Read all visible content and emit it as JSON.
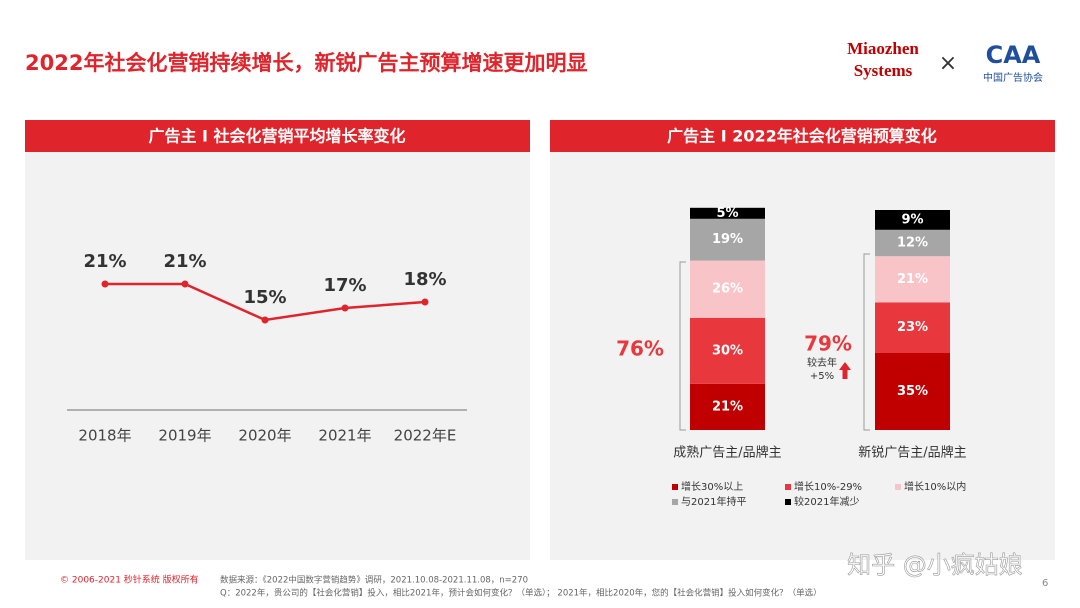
{
  "header": {
    "title": "2022年社会化营销持续增长，新锐广告主预算增速更加明显",
    "logo_left": [
      "Miaozhen",
      "Systems"
    ],
    "times": "×",
    "logo_right": "CAA",
    "logo_right_sub": "中国广告协会"
  },
  "chart_data": [
    {
      "type": "line",
      "title": "广告主 I 社会化营销平均增长率变化",
      "color": "#e0242c",
      "categories": [
        "2018年",
        "2019年",
        "2020年",
        "2021年",
        "2022年E"
      ],
      "values": [
        21,
        21,
        15,
        17,
        18
      ],
      "value_labels": [
        "21%",
        "21%",
        "15%",
        "17%",
        "18%"
      ]
    },
    {
      "type": "stacked_bar",
      "title": "广告主 I 2022年社会化营销预算变化",
      "categories": [
        "成熟广告主/品牌主",
        "新锐广告主/品牌主"
      ],
      "series": [
        {
          "name": "增长30%以上",
          "color": "#c00000",
          "values": [
            21,
            35
          ],
          "value_labels": [
            "21%",
            "35%"
          ]
        },
        {
          "name": "增长10%-29%",
          "color": "#e8383d",
          "values": [
            30,
            23
          ],
          "value_labels": [
            "30%",
            "23%"
          ]
        },
        {
          "name": "增长10%以内",
          "color": "#f9c4c8",
          "values": [
            26,
            21
          ],
          "value_labels": [
            "26%",
            "21%"
          ]
        },
        {
          "name": "与2021年持平",
          "color": "#a6a6a6",
          "values": [
            19,
            12
          ],
          "value_labels": [
            "19%",
            "12%"
          ]
        },
        {
          "name": "较2021年减少",
          "color": "#000000",
          "values": [
            5,
            9
          ],
          "value_labels": [
            "5%",
            "9%"
          ]
        }
      ],
      "annotations": [
        "76%",
        "79%",
        "较去年",
        "+5%"
      ]
    }
  ],
  "footer": {
    "copyright": "© 2006-2021 秒针系统 版权所有",
    "source": "数据来源：《2022中国数字营销趋势》调研，2021.10.08-2021.11.08，n=270",
    "question": "Q：2022年，贵公司的【社会化营销】投入，相比2021年，预计会如何变化？（单选）；   2021年，相比2020年，您的【社会化营销】投入如何变化？（单选）",
    "page": "6",
    "watermark": "知乎 @小疯姑娘"
  }
}
